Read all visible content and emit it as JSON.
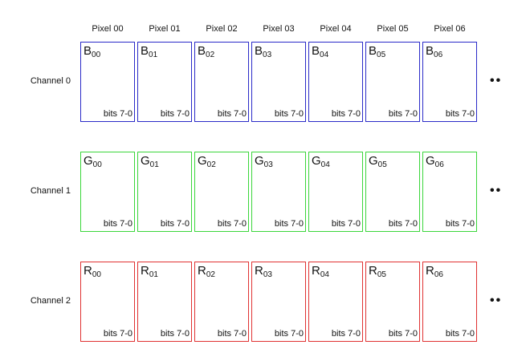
{
  "pixels": [
    "Pixel 00",
    "Pixel 01",
    "Pixel 02",
    "Pixel 03",
    "Pixel 04",
    "Pixel 05",
    "Pixel 06"
  ],
  "channels": [
    {
      "label": "Channel 0",
      "letter": "B",
      "color": "#2b2bc8",
      "bits": "bits 7-0",
      "cells": [
        "00",
        "01",
        "02",
        "03",
        "04",
        "05",
        "06"
      ]
    },
    {
      "label": "Channel 1",
      "letter": "G",
      "color": "#3ad63a",
      "bits": "bits 7-0",
      "cells": [
        "00",
        "01",
        "02",
        "03",
        "04",
        "05",
        "06"
      ]
    },
    {
      "label": "Channel 2",
      "letter": "R",
      "color": "#e03232",
      "bits": "bits 7-0",
      "cells": [
        "00",
        "01",
        "02",
        "03",
        "04",
        "05",
        "06"
      ]
    }
  ],
  "ellipsis": "••"
}
